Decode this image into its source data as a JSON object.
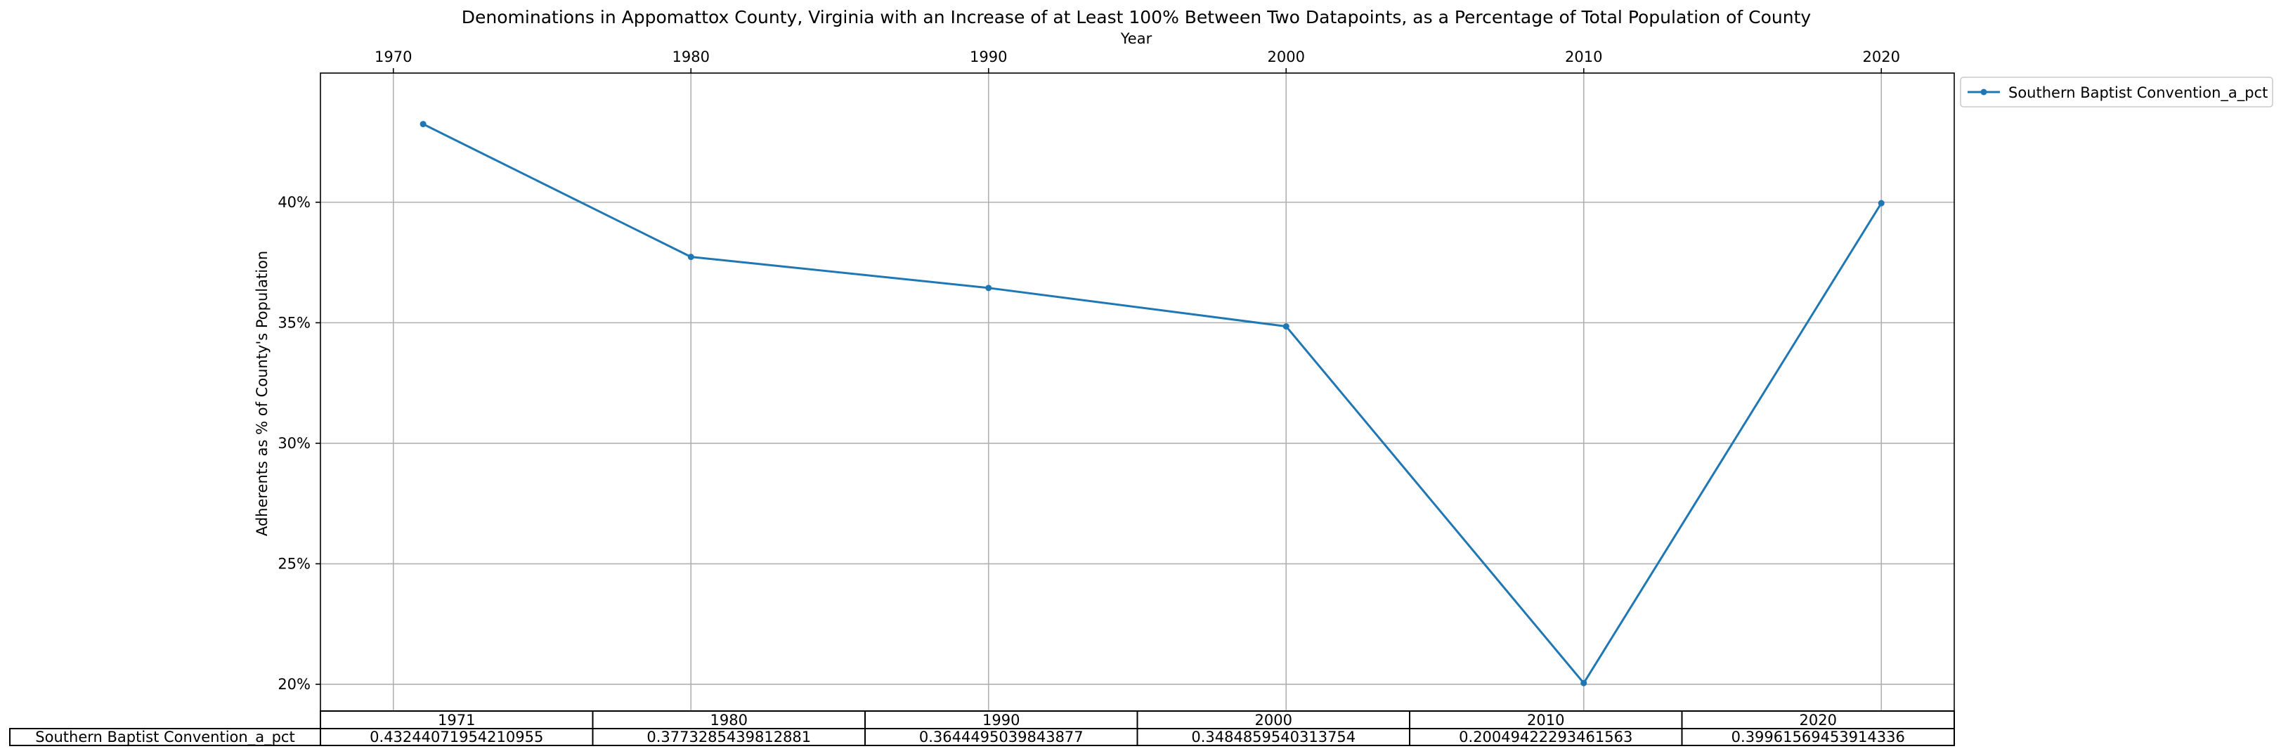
{
  "chart_data": {
    "type": "line",
    "title": "Denominations in Appomattox County, Virginia with an Increase of at Least 100% Between Two Datapoints, as a Percentage of Total Population of County",
    "xlabel": "Year",
    "ylabel": "Adherents as % of County's Population",
    "x": [
      1971,
      1980,
      1990,
      2000,
      2010,
      2020
    ],
    "x_ticks": [
      "1970",
      "1980",
      "1990",
      "2000",
      "2010",
      "2020"
    ],
    "x_tick_values": [
      1970,
      1980,
      1990,
      2000,
      2010,
      2020
    ],
    "xlim": [
      1967.55,
      2022.45
    ],
    "y_ticks": [
      "20%",
      "25%",
      "30%",
      "35%",
      "40%"
    ],
    "y_tick_values": [
      0.2,
      0.25,
      0.3,
      0.35,
      0.4
    ],
    "ylim": [
      0.1889,
      0.4536
    ],
    "grid": true,
    "legend_placement": "outside top-right",
    "series": [
      {
        "name": "Southern Baptist Convention_a_pct",
        "color": "#1f77b4",
        "values": [
          0.43244071954210955,
          0.3773285439812881,
          0.3644495039843877,
          0.3484859540313754,
          0.20049422293461563,
          0.39961569453914336
        ]
      }
    ],
    "table": {
      "col_labels": [
        "1971",
        "1980",
        "1990",
        "2000",
        "2010",
        "2020"
      ],
      "row_label": "Southern Baptist Convention_a_pct",
      "cells": [
        "0.43244071954210955",
        "0.3773285439812881",
        "0.3644495039843877",
        "0.3484859540313754",
        "0.20049422293461563",
        "0.39961569453914336"
      ]
    }
  }
}
